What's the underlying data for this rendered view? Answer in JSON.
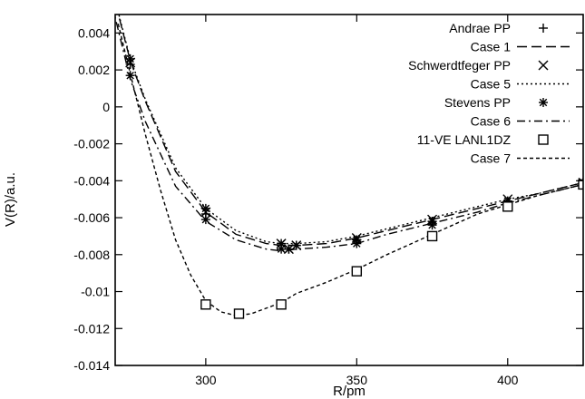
{
  "chart_data": {
    "type": "line",
    "xlabel": "R/pm",
    "ylabel": "V(R)/a.u.",
    "xlim": [
      270,
      425
    ],
    "ylim": [
      -0.014,
      0.005
    ],
    "x_ticks": [
      300,
      350,
      400
    ],
    "x_tick_labels": [
      "300",
      "350",
      "400"
    ],
    "y_ticks": [
      0.004,
      0.002,
      0,
      -0.002,
      -0.004,
      -0.006,
      -0.008,
      -0.01,
      -0.012,
      -0.014
    ],
    "y_tick_labels": [
      "0.004",
      "0.002",
      "0",
      "-0.002",
      "-0.004",
      "-0.006",
      "-0.008",
      "-0.01",
      "-0.012",
      "-0.014"
    ],
    "grid": false,
    "legend_position": "top-right",
    "series": [
      {
        "name": "Andrae PP",
        "kind": "points",
        "marker": "plus",
        "points": [
          [
            275,
            0.0023
          ],
          [
            300,
            -0.0058
          ],
          [
            325,
            -0.0075
          ],
          [
            327.5,
            -0.0077
          ],
          [
            330,
            -0.0075
          ],
          [
            350,
            -0.0072
          ],
          [
            375,
            -0.0062
          ],
          [
            400,
            -0.0051
          ],
          [
            425,
            -0.0041
          ]
        ]
      },
      {
        "name": "Case 1",
        "kind": "line",
        "dash": "11 5",
        "points": [
          [
            269,
            0.0063
          ],
          [
            275,
            0.0025
          ],
          [
            280,
            0.0003
          ],
          [
            290,
            -0.0035
          ],
          [
            300,
            -0.0057
          ],
          [
            310,
            -0.0069
          ],
          [
            320,
            -0.0074
          ],
          [
            325,
            -0.0075
          ],
          [
            330,
            -0.0075
          ],
          [
            340,
            -0.0074
          ],
          [
            350,
            -0.0071
          ],
          [
            360,
            -0.0067
          ],
          [
            375,
            -0.0061
          ],
          [
            390,
            -0.0055
          ],
          [
            400,
            -0.0051
          ],
          [
            410,
            -0.0047
          ],
          [
            425,
            -0.0041
          ]
        ]
      },
      {
        "name": "Schwerdtfeger PP",
        "kind": "points",
        "marker": "cross",
        "points": [
          [
            275,
            0.0024
          ],
          [
            300,
            -0.0057
          ],
          [
            325,
            -0.0074
          ],
          [
            327.5,
            -0.0077
          ],
          [
            330,
            -0.0075
          ],
          [
            350,
            -0.0071
          ],
          [
            375,
            -0.0061
          ],
          [
            400,
            -0.005
          ],
          [
            425,
            -0.0041
          ]
        ]
      },
      {
        "name": "Case 5",
        "kind": "line",
        "dash": "2 3",
        "points": [
          [
            269,
            0.0064
          ],
          [
            275,
            0.0026
          ],
          [
            280,
            0.0004
          ],
          [
            290,
            -0.0033
          ],
          [
            300,
            -0.0055
          ],
          [
            310,
            -0.0067
          ],
          [
            320,
            -0.0073
          ],
          [
            325,
            -0.0074
          ],
          [
            330,
            -0.0074
          ],
          [
            340,
            -0.0073
          ],
          [
            350,
            -0.007
          ],
          [
            360,
            -0.0066
          ],
          [
            375,
            -0.006
          ],
          [
            390,
            -0.0054
          ],
          [
            400,
            -0.005
          ],
          [
            410,
            -0.0047
          ],
          [
            425,
            -0.0041
          ]
        ]
      },
      {
        "name": "Stevens PP",
        "kind": "points",
        "marker": "star",
        "points": [
          [
            275,
            0.0026
          ],
          [
            275,
            0.0017
          ],
          [
            300,
            -0.0055
          ],
          [
            300,
            -0.0061
          ],
          [
            325,
            -0.0074
          ],
          [
            325,
            -0.0077
          ],
          [
            327.5,
            -0.0077
          ],
          [
            330,
            -0.0075
          ],
          [
            350,
            -0.0072
          ],
          [
            350,
            -0.0074
          ],
          [
            375,
            -0.0062
          ],
          [
            375,
            -0.0064
          ],
          [
            400,
            -0.0051
          ],
          [
            425,
            -0.0041
          ],
          [
            425,
            -0.0042
          ]
        ]
      },
      {
        "name": "Case 6",
        "kind": "line",
        "dash": "9 4 2 4",
        "points": [
          [
            269,
            0.0055
          ],
          [
            275,
            0.0015
          ],
          [
            280,
            -0.0008
          ],
          [
            290,
            -0.0043
          ],
          [
            300,
            -0.0062
          ],
          [
            310,
            -0.0072
          ],
          [
            320,
            -0.0077
          ],
          [
            325,
            -0.0078
          ],
          [
            330,
            -0.0077
          ],
          [
            340,
            -0.0076
          ],
          [
            350,
            -0.0074
          ],
          [
            360,
            -0.0069
          ],
          [
            375,
            -0.0063
          ],
          [
            390,
            -0.0057
          ],
          [
            400,
            -0.0052
          ],
          [
            410,
            -0.0048
          ],
          [
            425,
            -0.0042
          ]
        ]
      },
      {
        "name": "11-VE LANL1DZ",
        "kind": "points",
        "marker": "square",
        "points": [
          [
            300,
            -0.0107
          ],
          [
            311,
            -0.0112
          ],
          [
            325,
            -0.0107
          ],
          [
            350,
            -0.0089
          ],
          [
            375,
            -0.007
          ],
          [
            400,
            -0.0054
          ],
          [
            425,
            -0.0042
          ]
        ]
      },
      {
        "name": "Case 7",
        "kind": "line",
        "dash": "4 3",
        "points": [
          [
            271,
            0.0045
          ],
          [
            275,
            0.0018
          ],
          [
            280,
            -0.0015
          ],
          [
            285,
            -0.0045
          ],
          [
            290,
            -0.0072
          ],
          [
            295,
            -0.0091
          ],
          [
            300,
            -0.0105
          ],
          [
            305,
            -0.0111
          ],
          [
            310,
            -0.0113
          ],
          [
            315,
            -0.0112
          ],
          [
            320,
            -0.0109
          ],
          [
            325,
            -0.0106
          ],
          [
            330,
            -0.0101
          ],
          [
            340,
            -0.0095
          ],
          [
            350,
            -0.0088
          ],
          [
            360,
            -0.008
          ],
          [
            375,
            -0.0069
          ],
          [
            390,
            -0.0058
          ],
          [
            400,
            -0.0053
          ],
          [
            410,
            -0.0048
          ],
          [
            425,
            -0.0042
          ]
        ]
      }
    ]
  }
}
